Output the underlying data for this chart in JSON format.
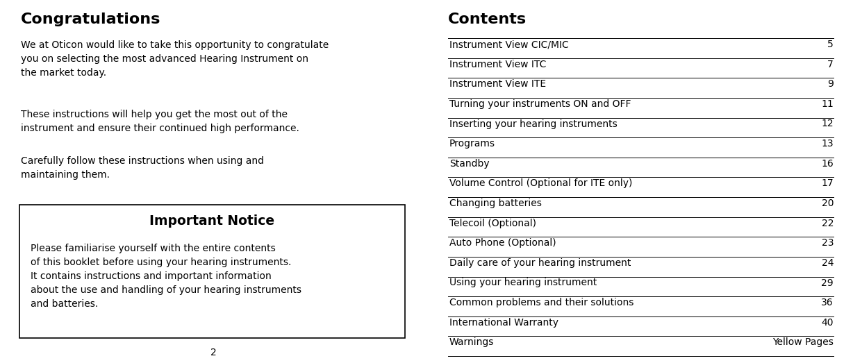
{
  "bg_color": "#ffffff",
  "left_title": "Congratulations",
  "left_para1": "We at Oticon would like to take this opportunity to congratulate\nyou on selecting the most advanced Hearing Instrument on\nthe market today.",
  "left_para2": "These instructions will help you get the most out of the\ninstrument and ensure their continued high performance.",
  "left_para3": "Carefully follow these instructions when using and\nmaintaining them.",
  "notice_title": "Important Notice",
  "notice_body": "Please familiarise yourself with the entire contents\nof this booklet before using your hearing instruments.\nIt contains instructions and important information\nabout the use and handling of your hearing instruments\nand batteries.",
  "page_number": "2",
  "right_title": "Contents",
  "toc_entries": [
    [
      "Instrument View CIC/MIC",
      "5"
    ],
    [
      "Instrument View ITC",
      "7"
    ],
    [
      "Instrument View ITE",
      "9"
    ],
    [
      "Turning your instruments ON and OFF",
      "11"
    ],
    [
      "Inserting your hearing instruments",
      "12"
    ],
    [
      "Programs",
      "13"
    ],
    [
      "Standby",
      "16"
    ],
    [
      "Volume Control (Optional for ITE only)",
      "17"
    ],
    [
      "Changing batteries",
      "20"
    ],
    [
      "Telecoil (Optional)",
      "22"
    ],
    [
      "Auto Phone (Optional)",
      "23"
    ],
    [
      "Daily care of your hearing instrument",
      "24"
    ],
    [
      "Using your hearing instrument",
      "29"
    ],
    [
      "Common problems and their solutions",
      "36"
    ],
    [
      "International Warranty",
      "40"
    ],
    [
      "Warnings",
      "Yellow Pages"
    ]
  ]
}
